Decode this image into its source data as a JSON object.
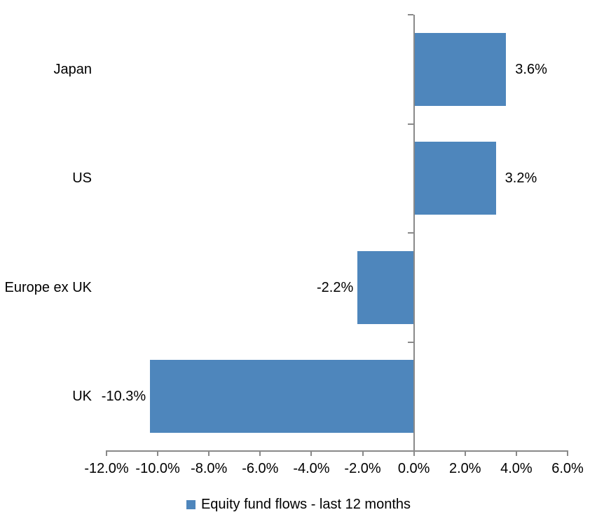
{
  "chart_data": {
    "type": "bar",
    "orientation": "horizontal",
    "categories": [
      "Japan",
      "US",
      "Europe ex UK",
      "UK"
    ],
    "values": [
      3.6,
      3.2,
      -2.2,
      -10.3
    ],
    "data_labels": [
      "3.6%",
      "3.2%",
      "-2.2%",
      "-10.3%"
    ],
    "x_axis": {
      "min": -12.0,
      "max": 6.0,
      "tick_step": 2.0,
      "tick_labels": [
        "-12.0%",
        "-10.0%",
        "-8.0%",
        "-6.0%",
        "-4.0%",
        "-2.0%",
        "0.0%",
        "2.0%",
        "4.0%",
        "6.0%"
      ]
    },
    "legend": {
      "label": "Equity fund flows - last 12 months",
      "position": "bottom"
    },
    "colors": {
      "bar": "#4E86BC",
      "axis": "#898989",
      "text": "#000000",
      "background": "#FFFFFF"
    },
    "grid": false
  }
}
